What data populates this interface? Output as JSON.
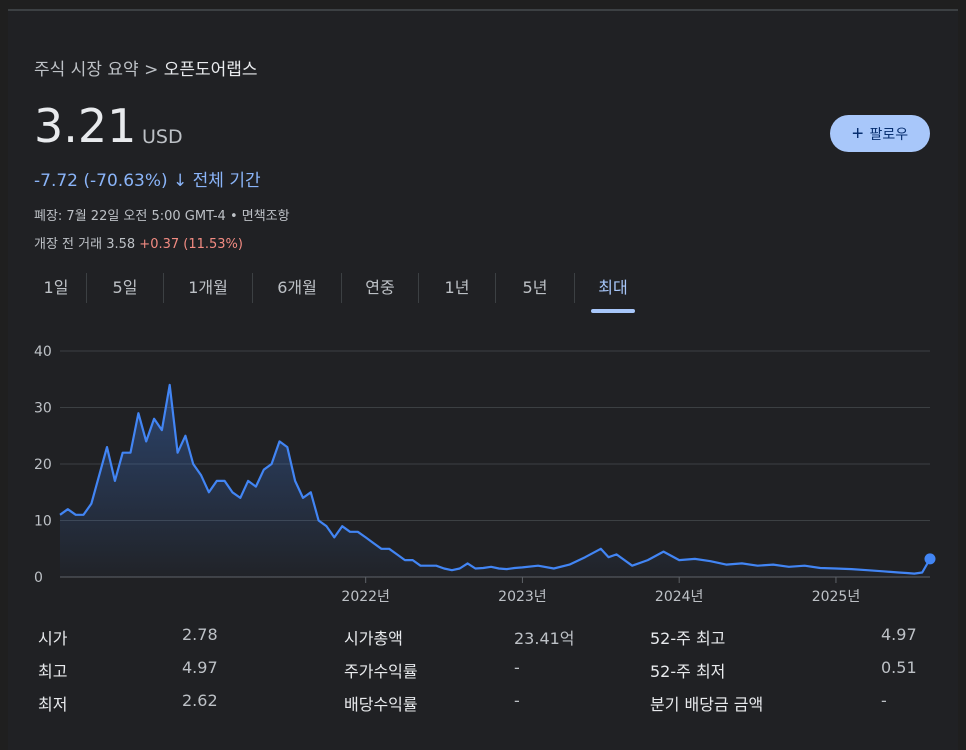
{
  "breadcrumb": {
    "parent": "주식 시장 요약",
    "separator": ">",
    "current": "오픈도어랩스"
  },
  "quote": {
    "price": "3.21",
    "currency": "USD",
    "change": "-7.72 (-70.63%)",
    "change_arrow": "↓",
    "change_period": "전체 기간",
    "closed_info": "폐장: 7월 22일 오전 5:00 GMT-4 • 면책조항",
    "premarket_label": "개장 전 거래 3.58",
    "premarket_change": "+0.37 (11.53%)"
  },
  "follow_button": {
    "icon": "plus-icon",
    "label": "팔로우"
  },
  "range_tabs": [
    {
      "label": "1일"
    },
    {
      "label": "5일"
    },
    {
      "label": "1개월"
    },
    {
      "label": "6개월"
    },
    {
      "label": "연중"
    },
    {
      "label": "1년"
    },
    {
      "label": "5년"
    },
    {
      "label": "최대",
      "active": true
    }
  ],
  "colors": {
    "line": "#4285f4",
    "accent": "#8ab4f8",
    "positive": "#f28b82",
    "background": "#202124"
  },
  "chart_data": {
    "type": "area",
    "ylim": [
      0,
      40
    ],
    "y_ticks": [
      "0",
      "10",
      "20",
      "30",
      "40"
    ],
    "x_ticks": [
      {
        "label": "2022년",
        "x": 2022.0
      },
      {
        "label": "2023년",
        "x": 2023.0
      },
      {
        "label": "2024년",
        "x": 2024.0
      },
      {
        "label": "2025년",
        "x": 2025.0
      }
    ],
    "xlim": [
      2020.05,
      2025.6
    ],
    "grid": true,
    "series": [
      {
        "x": [
          2020.05,
          2020.1,
          2020.15,
          2020.2,
          2020.25,
          2020.3,
          2020.35,
          2020.4,
          2020.45,
          2020.5,
          2020.55,
          2020.6,
          2020.65,
          2020.7,
          2020.75,
          2020.8,
          2020.85,
          2020.9,
          2020.95,
          2021.0,
          2021.05,
          2021.1,
          2021.15,
          2021.2,
          2021.25,
          2021.3,
          2021.35,
          2021.4,
          2021.45,
          2021.5,
          2021.55,
          2021.6,
          2021.65,
          2021.7,
          2021.75,
          2021.8,
          2021.85,
          2021.9,
          2021.95,
          2022.0,
          2022.05,
          2022.1,
          2022.15,
          2022.2,
          2022.25,
          2022.3,
          2022.35,
          2022.4,
          2022.45,
          2022.5,
          2022.55,
          2022.6,
          2022.65,
          2022.7,
          2022.75,
          2022.8,
          2022.85,
          2022.9,
          2022.95,
          2023.0,
          2023.1,
          2023.2,
          2023.3,
          2023.4,
          2023.5,
          2023.55,
          2023.6,
          2023.7,
          2023.8,
          2023.9,
          2024.0,
          2024.1,
          2024.2,
          2024.3,
          2024.4,
          2024.5,
          2024.6,
          2024.7,
          2024.8,
          2024.9,
          2025.0,
          2025.1,
          2025.2,
          2025.3,
          2025.4,
          2025.45,
          2025.5,
          2025.55,
          2025.6
        ],
        "y": [
          11,
          12,
          11,
          11,
          13,
          18,
          23,
          17,
          22,
          22,
          29,
          24,
          28,
          26,
          34,
          22,
          25,
          20,
          18,
          15,
          17,
          17,
          15,
          14,
          17,
          16,
          19,
          20,
          24,
          23,
          17,
          14,
          15,
          10,
          9,
          7,
          9,
          8,
          8,
          7,
          6,
          5,
          5,
          4,
          3,
          3,
          2,
          2,
          2,
          1.5,
          1.2,
          1.5,
          2.4,
          1.5,
          1.6,
          1.8,
          1.5,
          1.4,
          1.6,
          1.7,
          2.0,
          1.5,
          2.2,
          3.5,
          5.0,
          3.5,
          4.0,
          2.0,
          3.0,
          4.5,
          3.0,
          3.2,
          2.8,
          2.2,
          2.4,
          2.0,
          2.2,
          1.8,
          2.0,
          1.6,
          1.5,
          1.4,
          1.2,
          1.0,
          0.8,
          0.7,
          0.6,
          0.8,
          3.21
        ]
      }
    ]
  },
  "stats": [
    {
      "label": "시가",
      "value": "2.78"
    },
    {
      "label": "최고",
      "value": "4.97"
    },
    {
      "label": "최저",
      "value": "2.62"
    },
    {
      "label": "시가총액",
      "value": "23.41억"
    },
    {
      "label": "주가수익률",
      "value": "-"
    },
    {
      "label": "배당수익률",
      "value": "-"
    },
    {
      "label": "52-주 최고",
      "value": "4.97"
    },
    {
      "label": "52-주 최저",
      "value": "0.51"
    },
    {
      "label": "분기 배당금 금액",
      "value": "-"
    }
  ]
}
